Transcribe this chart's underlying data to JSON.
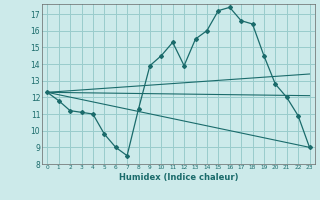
{
  "xlabel": "Humidex (Indice chaleur)",
  "bg_color": "#cceaea",
  "grid_color": "#99cccc",
  "line_color": "#1a6b6b",
  "xlim": [
    -0.5,
    23.5
  ],
  "ylim": [
    8,
    17.6
  ],
  "xticks": [
    0,
    1,
    2,
    3,
    4,
    5,
    6,
    7,
    8,
    9,
    10,
    11,
    12,
    13,
    14,
    15,
    16,
    17,
    18,
    19,
    20,
    21,
    22,
    23
  ],
  "yticks": [
    8,
    9,
    10,
    11,
    12,
    13,
    14,
    15,
    16,
    17
  ],
  "main_line": {
    "x": [
      0,
      1,
      2,
      3,
      4,
      5,
      6,
      7,
      8,
      9,
      10,
      11,
      12,
      13,
      14,
      15,
      16,
      17,
      18,
      19,
      20,
      21,
      22,
      23
    ],
    "y": [
      12.3,
      11.8,
      11.2,
      11.1,
      11.0,
      9.8,
      9.0,
      8.5,
      11.3,
      13.9,
      14.5,
      15.3,
      13.9,
      15.5,
      16.0,
      17.2,
      17.4,
      16.6,
      16.4,
      14.5,
      12.8,
      12.0,
      10.9,
      9.0
    ]
  },
  "line2": {
    "x": [
      0,
      23
    ],
    "y": [
      12.3,
      13.4
    ]
  },
  "line3": {
    "x": [
      0,
      23
    ],
    "y": [
      12.3,
      12.1
    ]
  },
  "line4": {
    "x": [
      0,
      23
    ],
    "y": [
      12.3,
      9.0
    ]
  }
}
